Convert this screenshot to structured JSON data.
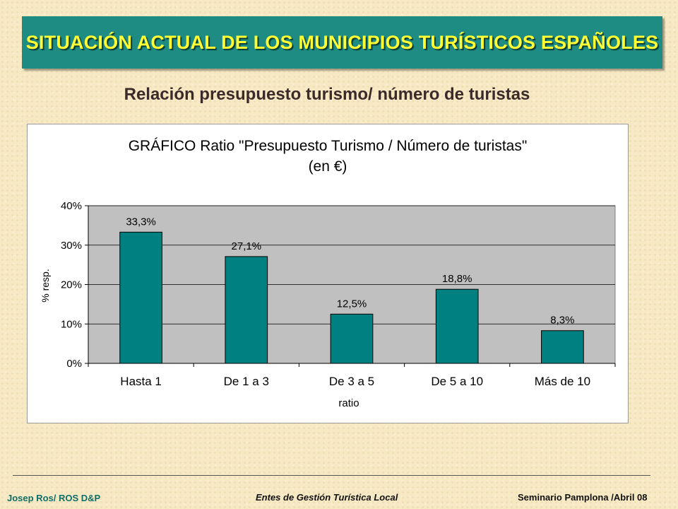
{
  "header": {
    "title": "SITUACIÓN ACTUAL DE LOS MUNICIPIOS TURÍSTICOS ESPAÑOLES",
    "subtitle": "Relación presupuesto turismo/ número de turistas"
  },
  "chart_data": {
    "type": "bar",
    "title": "GRÁFICO Ratio \"Presupuesto Turismo / Número de turistas\"",
    "subtitle": "(en €)",
    "xlabel": "ratio",
    "ylabel": "% resp.",
    "categories": [
      "Hasta 1",
      "De 1 a 3",
      "De 3 a 5",
      "De 5 a 10",
      "Más de 10"
    ],
    "values": [
      33.3,
      27.1,
      12.5,
      18.8,
      8.3
    ],
    "data_labels": [
      "33,3%",
      "27,1%",
      "12,5%",
      "18,8%",
      "8,3%"
    ],
    "ylim": [
      0,
      40
    ],
    "yticks": [
      0,
      10,
      20,
      30,
      40
    ],
    "ytick_labels": [
      "0%",
      "10%",
      "20%",
      "30%",
      "40%"
    ],
    "grid": true,
    "colors": {
      "bar": "#008080",
      "plot_background": "#c0c0c0"
    }
  },
  "footer": {
    "left": "Josep Ros/ ROS D&P",
    "center": "Entes de Gestión Turística Local",
    "right": "Seminario Pamplona /Abril 08"
  }
}
